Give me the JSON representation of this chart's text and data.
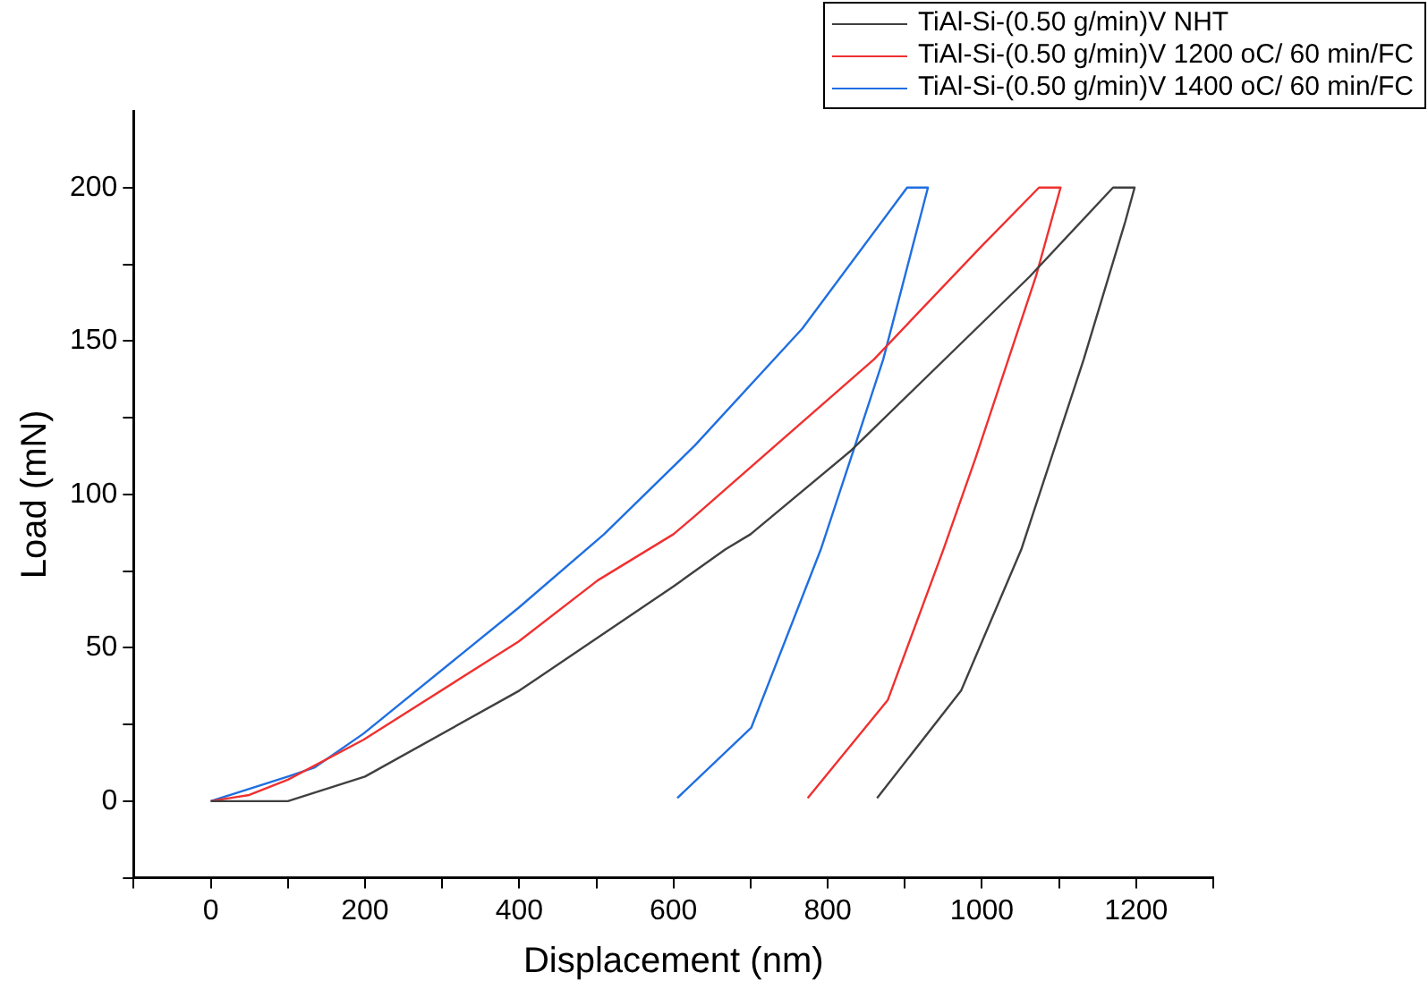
{
  "chart_data": {
    "type": "line",
    "xlabel": "Displacement (nm)",
    "ylabel": "Load (mN)",
    "xlim": [
      -100,
      1300
    ],
    "xticks": [
      {
        "value": -100,
        "label": null
      },
      0,
      {
        "value": 100,
        "label": null
      },
      200,
      {
        "value": 300,
        "label": null
      },
      400,
      {
        "value": 500,
        "label": null
      },
      600,
      {
        "value": 700,
        "label": null
      },
      800,
      {
        "value": 900,
        "label": null
      },
      1000,
      {
        "value": 1100,
        "label": null
      },
      1200,
      {
        "value": 1300,
        "label": null
      }
    ],
    "ylim": [
      -25,
      225
    ],
    "yticks": [
      {
        "value": -25,
        "label": null
      },
      0,
      {
        "value": 25,
        "label": null
      },
      50,
      {
        "value": 75,
        "label": null
      },
      100,
      {
        "value": 125,
        "label": null
      },
      150,
      {
        "value": 175,
        "label": null
      },
      200
    ],
    "legend": "top right",
    "marker": "none",
    "series": [
      {
        "name": "TiAl-Si-(0.50 g/min)V NHT",
        "color": "#404040",
        "x": [
          0,
          50,
          100,
          200,
          400,
          600,
          667,
          700,
          829,
          1062,
          1170,
          1198,
          1186,
          1132,
          1051,
          973,
          864
        ],
        "values": [
          0,
          0,
          0,
          8,
          36,
          70,
          82,
          87,
          114,
          171,
          200,
          200,
          189,
          144,
          82,
          36,
          1
        ]
      },
      {
        "name": "TiAl-Si-(0.50 g/min)V 1200 oC/ 60 min/FC",
        "color": "#f03030",
        "x": [
          0,
          50,
          100,
          198,
          399,
          502,
          600,
          628,
          860,
          1000,
          1074,
          1102,
          1070,
          992,
          950,
          878,
          774
        ],
        "values": [
          0,
          2,
          7,
          20,
          52,
          72,
          87,
          93,
          144,
          181,
          200,
          200,
          171,
          112,
          82,
          33,
          1
        ]
      },
      {
        "name": "TiAl-Si-(0.50 g/min)V 1400 oC/ 60 min/FC",
        "color": "#1f6fe0",
        "x": [
          0,
          100,
          135,
          198,
          399,
          510,
          628,
          767,
          903,
          930,
          872,
          833,
          791,
          701,
          605
        ],
        "values": [
          0,
          8,
          11,
          22,
          63,
          87,
          116,
          154,
          200,
          200,
          144,
          114,
          82,
          24,
          1
        ]
      }
    ]
  }
}
